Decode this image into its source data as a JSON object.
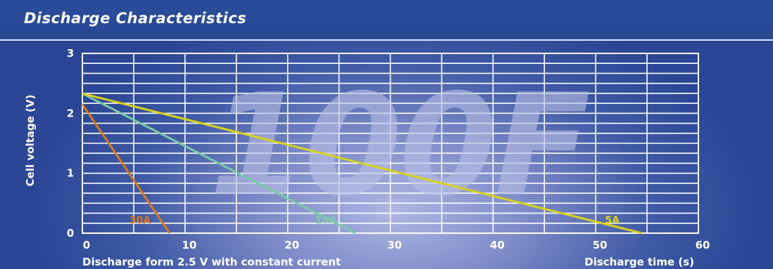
{
  "header": {
    "title": "Discharge Characteristics"
  },
  "chart_data": {
    "type": "line",
    "watermark": "100F",
    "xlabel": "Discharge time (s)",
    "ylabel": "Cell voltage (V)",
    "subtitle": "Discharge form 2.5 V with constant current",
    "xlim": [
      0,
      60
    ],
    "ylim": [
      0,
      3
    ],
    "xticks": [
      0,
      10,
      20,
      30,
      40,
      50,
      60
    ],
    "yticks": [
      0,
      1,
      2,
      3
    ],
    "grid": true,
    "series": [
      {
        "name": "30A",
        "color": "#d97a1c",
        "x": [
          0,
          8.5
        ],
        "y": [
          2.15,
          0
        ]
      },
      {
        "name": "10A",
        "color": "#7cc9a8",
        "x": [
          0,
          26.6
        ],
        "y": [
          2.33,
          0
        ]
      },
      {
        "name": "5A",
        "color": "#d9d21a",
        "x": [
          0,
          54.5
        ],
        "y": [
          2.33,
          0
        ]
      }
    ]
  }
}
